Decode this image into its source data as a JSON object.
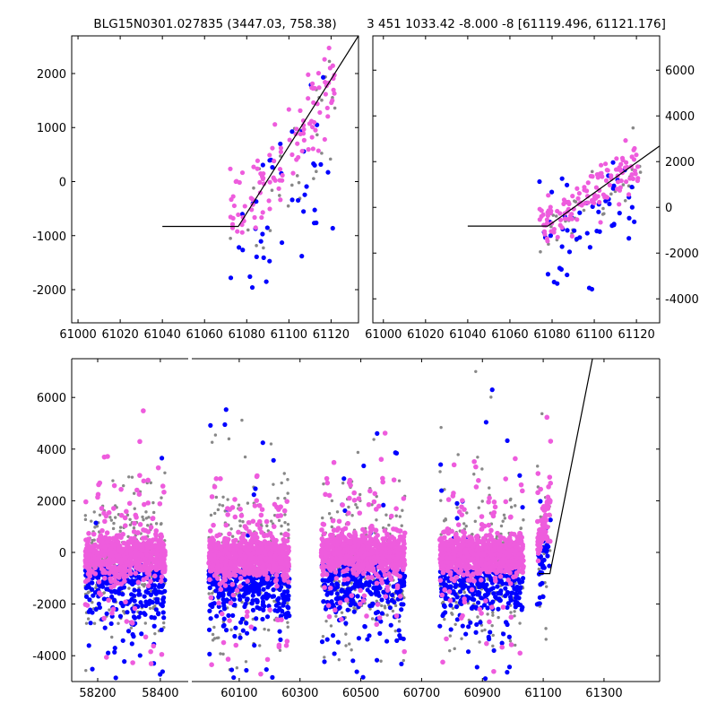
{
  "chart_data": [
    {
      "id": "top-left",
      "type": "scatter",
      "title": "BLG15N0301.027835 (3447.03, 758.38)",
      "xlim": [
        60997,
        61133
      ],
      "ylim": [
        -2614,
        2697
      ],
      "xticks": [
        61000,
        61020,
        61040,
        61060,
        61080,
        61100,
        61120
      ],
      "yticks": [
        -2000,
        -1000,
        0,
        1000,
        2000
      ],
      "yaxis_side": "left",
      "x_range_of_points": [
        61072,
        61122
      ],
      "model_line": [
        [
          61040,
          -830
        ],
        [
          61076,
          -830
        ],
        [
          61133,
          2700
        ]
      ],
      "series": [
        {
          "name": "pink",
          "color": "#ee5cdd",
          "count": 110,
          "offset": 0,
          "spread": 380
        },
        {
          "name": "blue",
          "color": "#0000ff",
          "count": 45,
          "offset": -900,
          "spread": 800
        },
        {
          "name": "gray",
          "color": "#888888",
          "count": 30,
          "offset": -300,
          "spread": 600
        }
      ]
    },
    {
      "id": "top-right",
      "type": "scatter",
      "title": "3 451 1033.42 -8.000 -8 [61119.496, 61121.176]",
      "xlim": [
        60995,
        61131
      ],
      "ylim": [
        -5050,
        7500
      ],
      "xticks": [
        61000,
        61020,
        61040,
        61060,
        61080,
        61100,
        61120
      ],
      "yticks": [
        -4000,
        -2000,
        0,
        2000,
        4000,
        6000
      ],
      "yaxis_side": "right",
      "x_range_of_points": [
        61074,
        61122
      ],
      "model_line": [
        [
          61040,
          -820
        ],
        [
          61078,
          -820
        ],
        [
          61133,
          2820
        ]
      ],
      "series": [
        {
          "name": "pink",
          "color": "#ee5cdd",
          "count": 130,
          "offset": 0,
          "spread": 500
        },
        {
          "name": "blue",
          "color": "#0000ff",
          "count": 55,
          "offset": -1300,
          "spread": 1100
        },
        {
          "name": "gray",
          "color": "#888888",
          "count": 35,
          "offset": -300,
          "spread": 700
        }
      ]
    },
    {
      "id": "bottom",
      "type": "scatter",
      "title": "",
      "broken_x_axis": true,
      "segments": [
        {
          "xlim": [
            58117,
            58489
          ],
          "xticks": [
            58200,
            58400
          ]
        },
        {
          "xlim": [
            59944,
            61483
          ],
          "xticks": [
            60100,
            60300,
            60500,
            60700,
            60900,
            61100,
            61300
          ]
        }
      ],
      "ylim": [
        -5000,
        7500
      ],
      "yticks": [
        -4000,
        -2000,
        0,
        2000,
        4000,
        6000
      ],
      "yaxis_side": "left",
      "seasons": [
        {
          "x_range": [
            58160,
            58415
          ],
          "pink_mean": -150,
          "blue_mean": -1400,
          "n": 700
        },
        {
          "x_range": [
            60000,
            60265
          ],
          "pink_mean": -200,
          "blue_mean": -1500,
          "n": 800
        },
        {
          "x_range": [
            60370,
            60645
          ],
          "pink_mean": -50,
          "blue_mean": -1300,
          "n": 750
        },
        {
          "x_range": [
            60760,
            61035
          ],
          "pink_mean": -100,
          "blue_mean": -1500,
          "n": 750
        },
        {
          "x_range": [
            61080,
            61125
          ],
          "pink_mean": 0,
          "blue_mean": -1000,
          "n": 80,
          "rising": true
        }
      ],
      "model_line": [
        [
          61085,
          -820
        ],
        [
          61122,
          -820
        ],
        [
          61262,
          7500
        ]
      ],
      "colors": {
        "pink": "#ee5cdd",
        "blue": "#0000ff",
        "gray": "#888888"
      }
    }
  ]
}
